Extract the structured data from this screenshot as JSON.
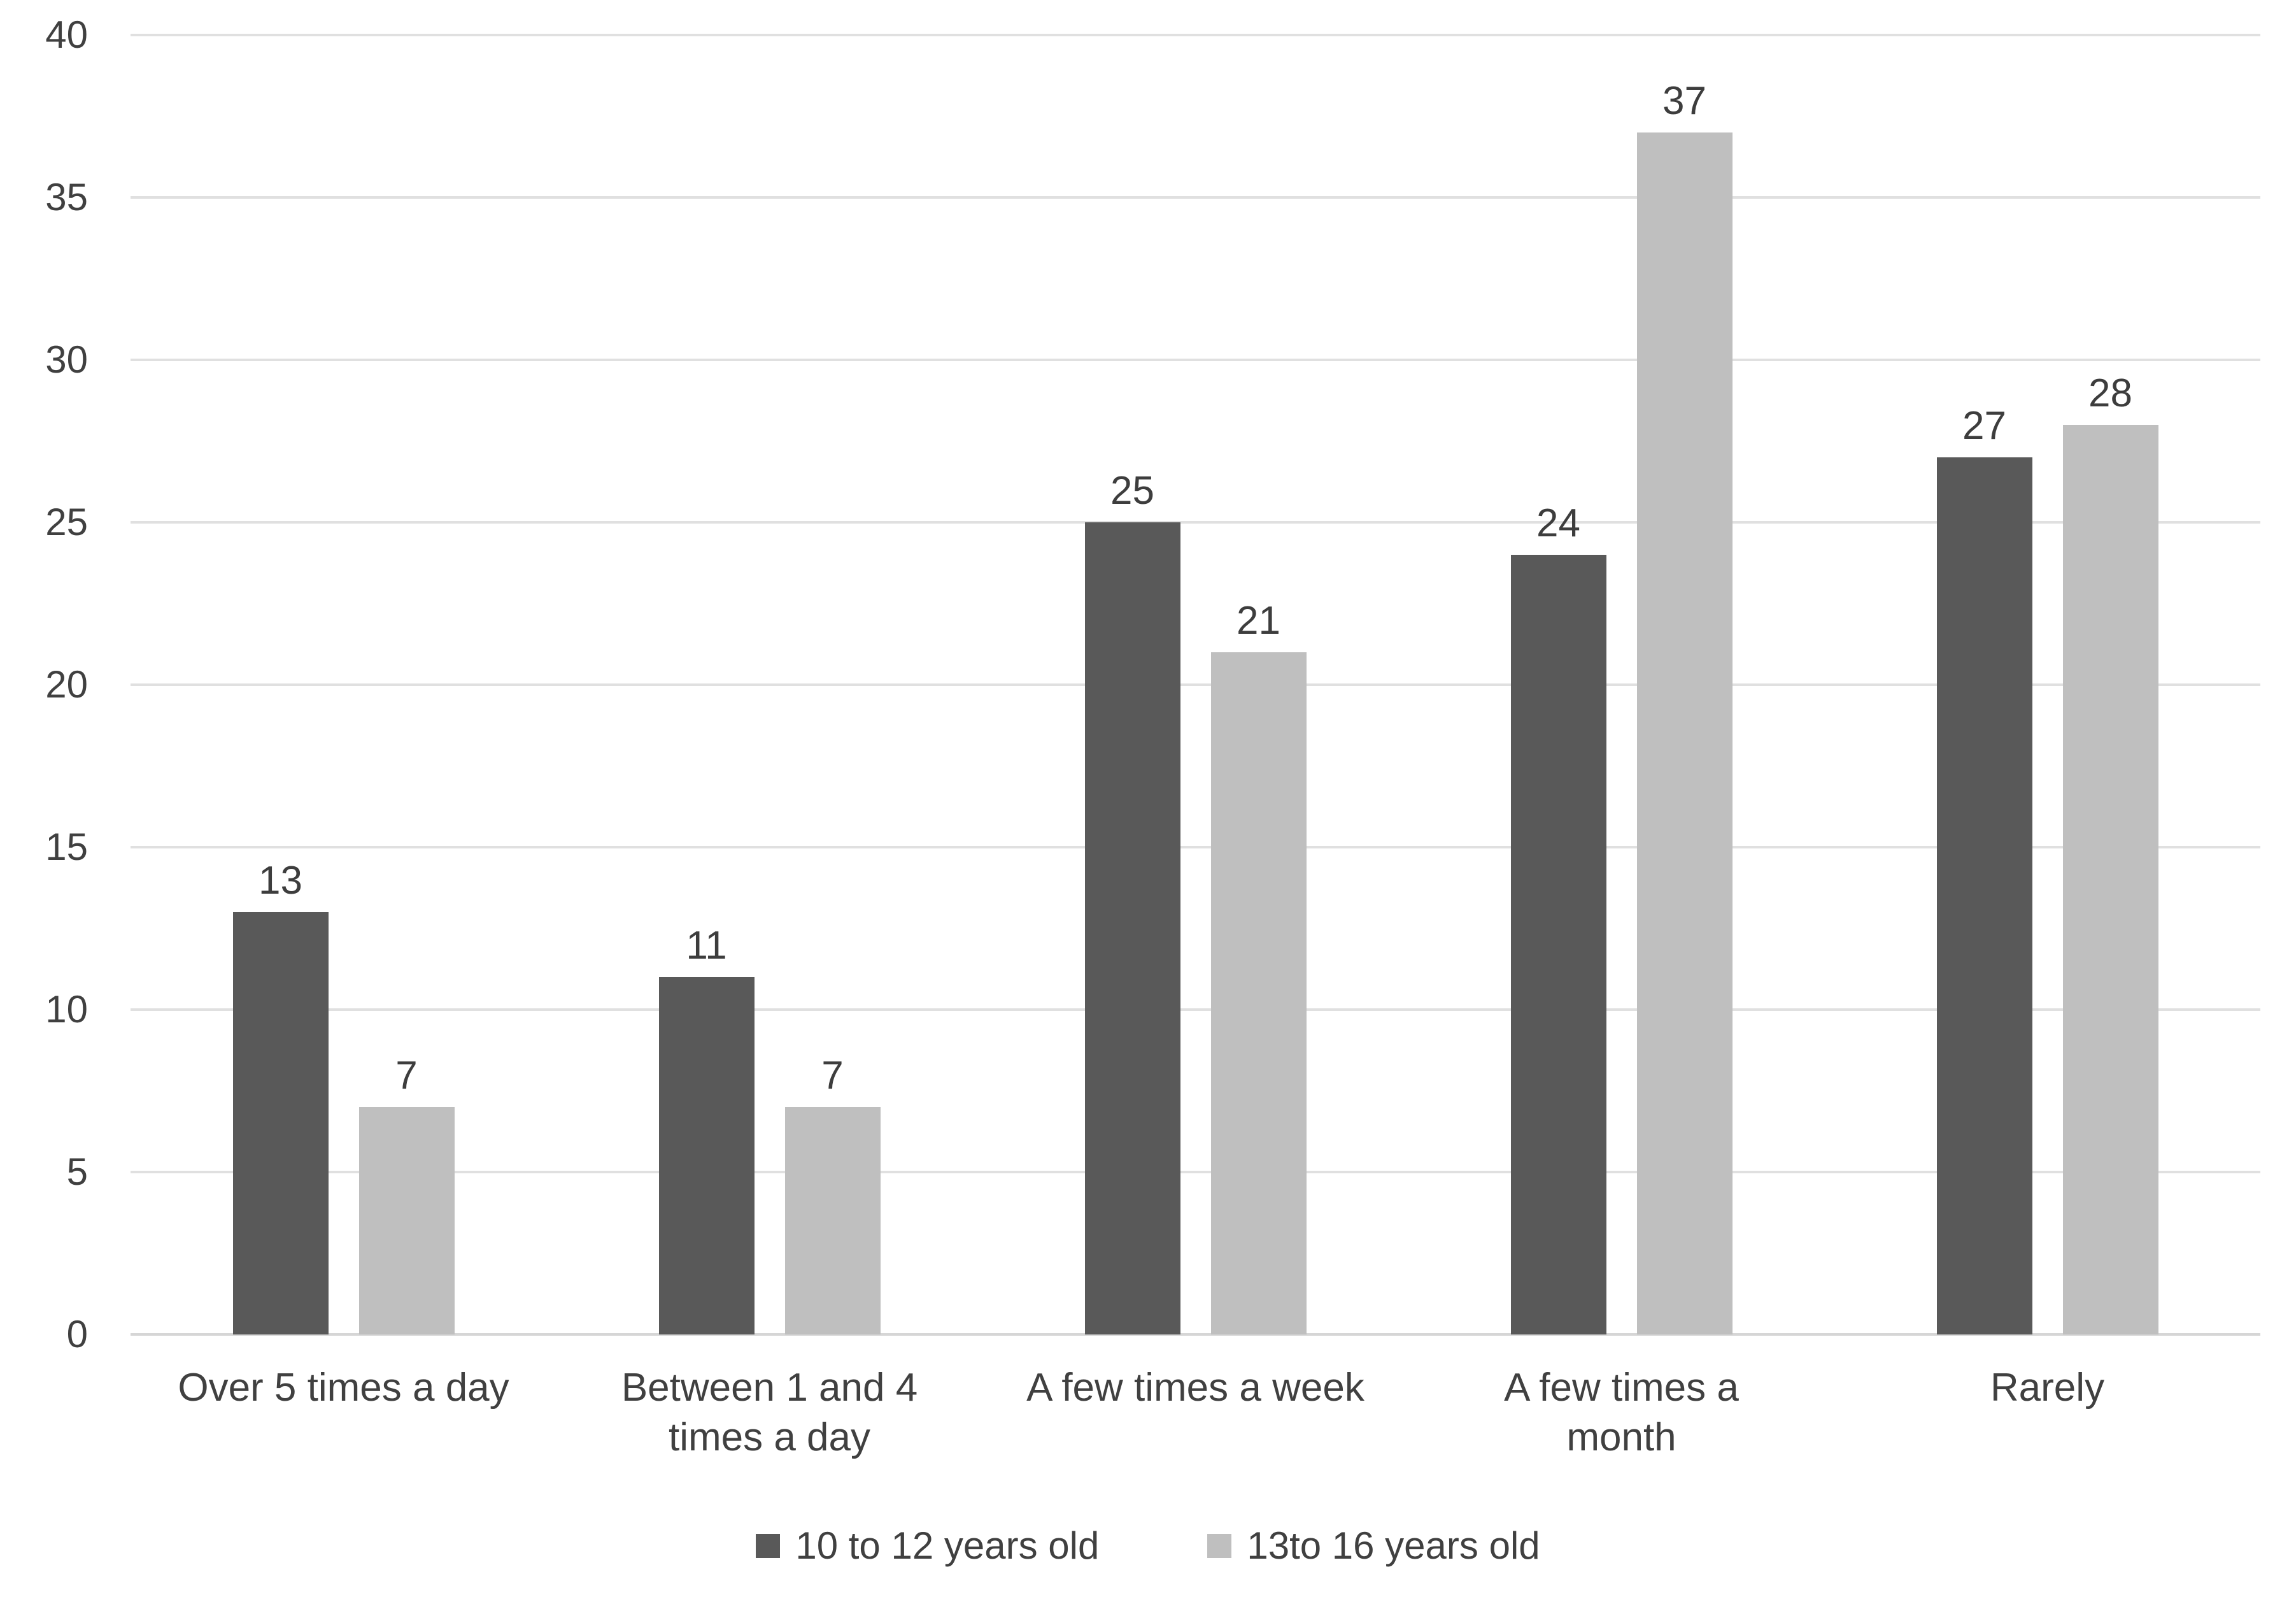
{
  "chart_data": {
    "type": "bar",
    "title": "",
    "xlabel": "",
    "ylabel": "",
    "categories": [
      "Over 5 times a day",
      "Between 1 and 4\ntimes a day",
      "A few times a week",
      "A few times a\nmonth",
      "Rarely"
    ],
    "series": [
      {
        "name": "10 to 12 years old",
        "color": "#595959",
        "values": [
          13,
          11,
          25,
          24,
          27
        ]
      },
      {
        "name": "13to 16 years old",
        "color": "#bfbfbf",
        "values": [
          7,
          7,
          21,
          37,
          28
        ]
      }
    ],
    "y_axis": {
      "min": 0,
      "max": 40,
      "step": 5,
      "ticks": [
        0,
        5,
        10,
        15,
        20,
        25,
        30,
        35,
        40
      ]
    },
    "grid": true,
    "data_labels": true,
    "legend": {
      "position": "bottom",
      "entries": [
        {
          "label": "10 to 12 years old",
          "color": "#595959"
        },
        {
          "label": "13to 16 years old",
          "color": "#bfbfbf"
        }
      ]
    }
  },
  "colors": {
    "background": "#ffffff",
    "gridline": "#e0e0e0",
    "baseline": "#d6d6d6",
    "text": "#404040",
    "series_dark": "#595959",
    "series_light": "#bfbfbf"
  }
}
